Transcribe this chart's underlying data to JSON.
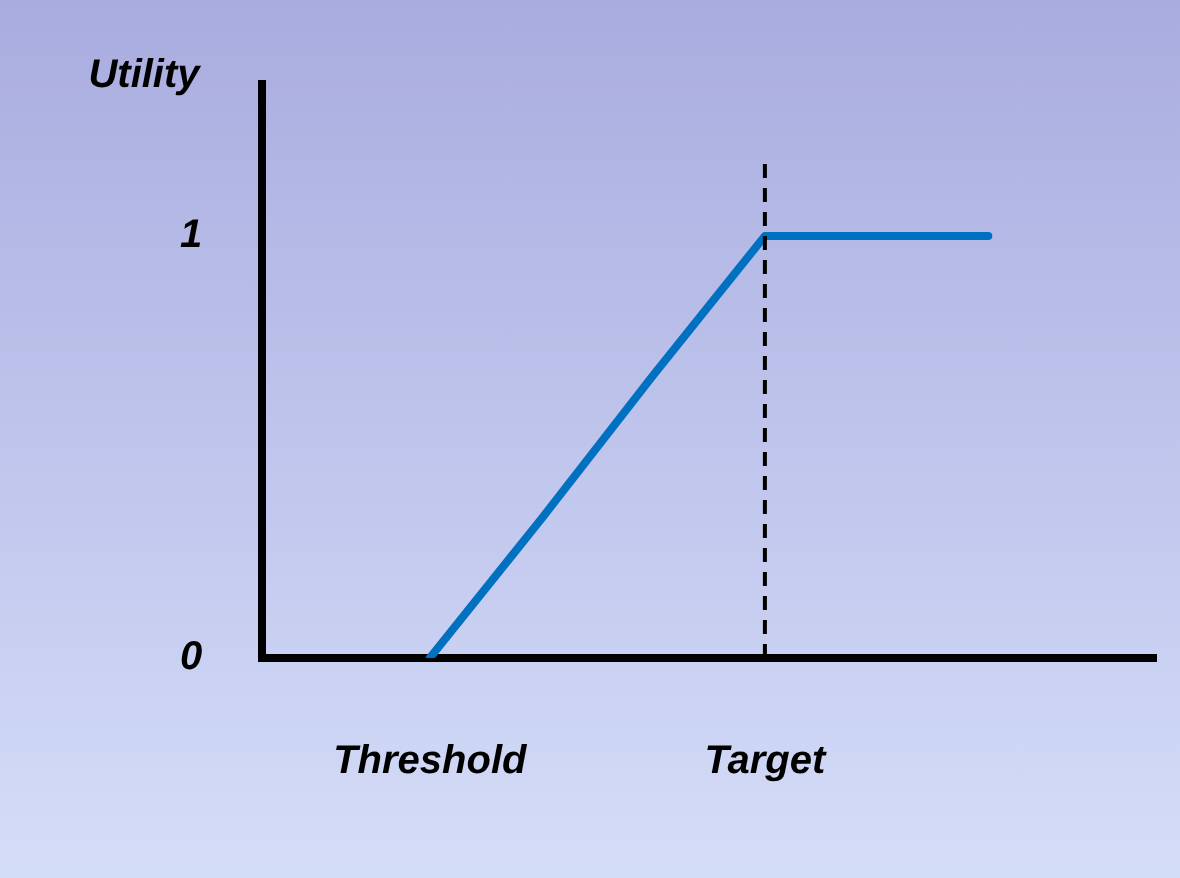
{
  "chart_data": {
    "type": "line",
    "ylabel": "Utility",
    "categories": [
      null,
      "Threshold",
      null,
      null,
      "Target",
      null,
      null,
      null
    ],
    "series": [
      {
        "color": "#0070c0",
        "values": [
          null,
          0,
          0.33,
          0.67,
          1,
          1,
          1,
          null
        ]
      }
    ],
    "ylim": [
      0,
      1.36
    ],
    "yticks": [
      0,
      1
    ],
    "ref_lines": [
      {
        "axis": "x",
        "value": "Target",
        "color": "#000000",
        "line_style": "dashed"
      }
    ],
    "grid": false,
    "legend": false,
    "marker": "none",
    "line_style": "solid"
  }
}
